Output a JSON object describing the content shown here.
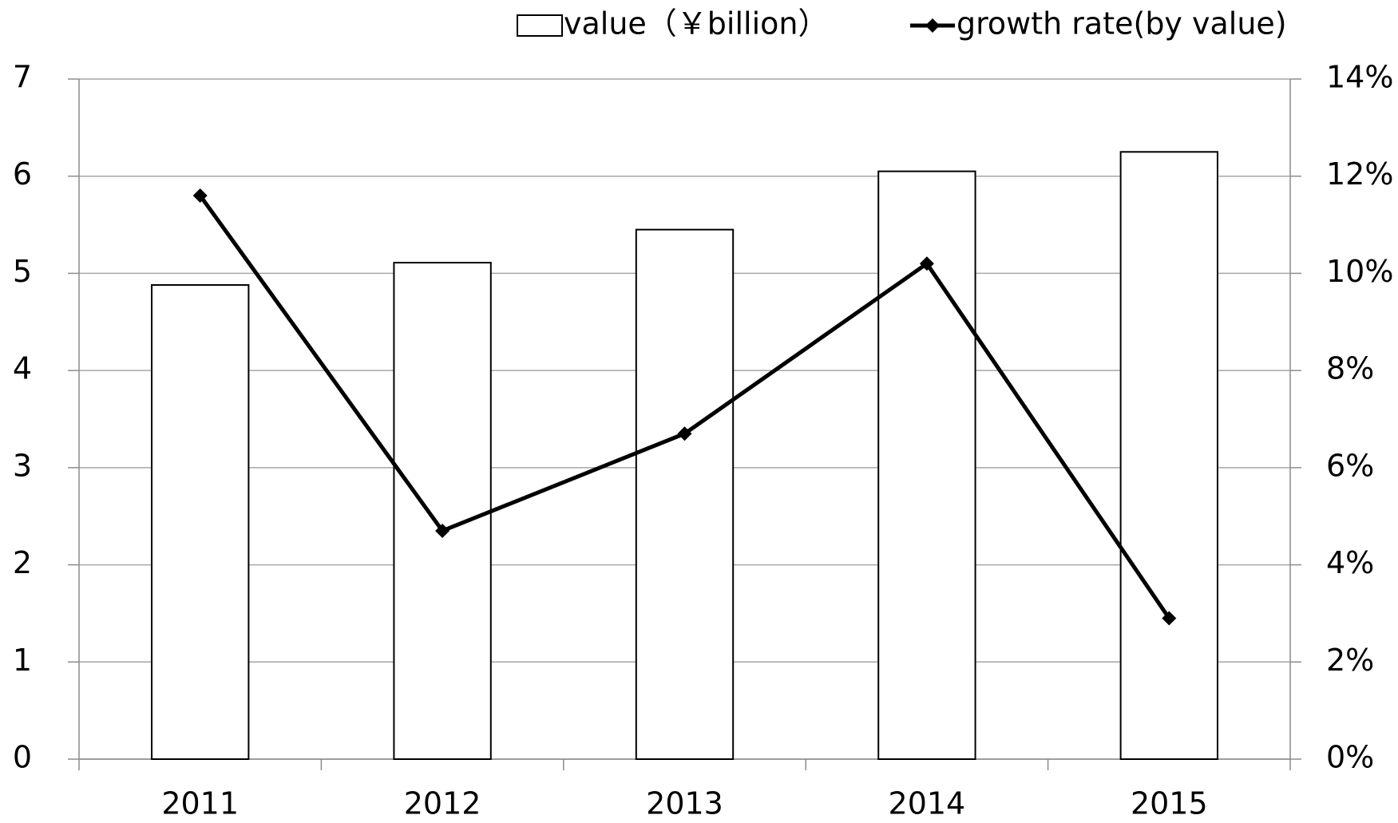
{
  "chart_data": {
    "type": "bar_line",
    "categories": [
      "2011",
      "2012",
      "2013",
      "2014",
      "2015"
    ],
    "series": [
      {
        "name": "value（￥billion）",
        "type": "bar",
        "color": "#ffffff",
        "values": [
          4.88,
          5.11,
          5.45,
          6.05,
          6.25
        ]
      },
      {
        "name": "growth rate(by value)",
        "type": "line",
        "color": "#000000",
        "axis": "y2",
        "values": [
          11.6,
          4.7,
          6.7,
          10.2,
          2.9
        ]
      }
    ],
    "ylim": [
      0,
      7
    ],
    "yticks": [
      0,
      1,
      2,
      3,
      4,
      5,
      6,
      7
    ],
    "y2lim": [
      0,
      14
    ],
    "y2ticks": [
      {
        "value": 0,
        "label": "0%"
      },
      {
        "value": 2,
        "label": "2%"
      },
      {
        "value": 4,
        "label": "4%"
      },
      {
        "value": 6,
        "label": "6%"
      },
      {
        "value": 8,
        "label": "8%"
      },
      {
        "value": 10,
        "label": "10%"
      },
      {
        "value": 12,
        "label": "12%"
      },
      {
        "value": 14,
        "label": "14%"
      }
    ],
    "grid": true
  }
}
